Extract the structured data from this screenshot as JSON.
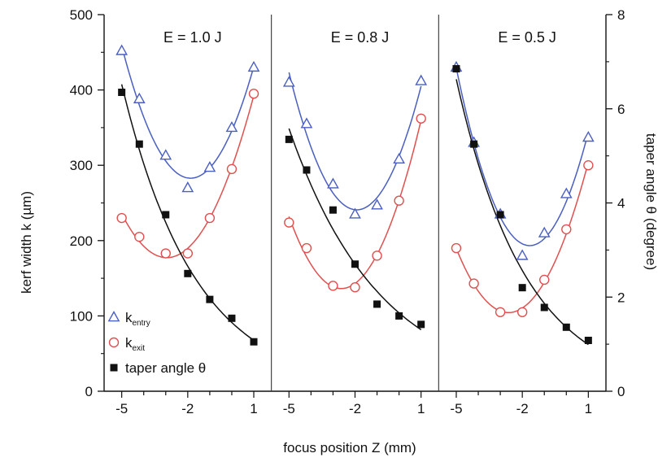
{
  "chart_data": {
    "type": "scatter",
    "xlabel": "focus position Z (mm)",
    "ylabel_left": "kerf width k (µm)",
    "ylabel_right": "taper angle θ (degree)",
    "x_ticks": [
      -5,
      -2,
      1
    ],
    "xlim": [
      -5.8,
      1.8
    ],
    "ylim_left": [
      0,
      500
    ],
    "ylim_right": [
      0,
      8
    ],
    "y_ticks_left": [
      0,
      100,
      200,
      300,
      400,
      500
    ],
    "y_ticks_right": [
      0,
      2,
      4,
      6,
      8
    ],
    "legend": {
      "position": "bottom-left",
      "entries": [
        {
          "key": "k_entry",
          "main": "k",
          "sub": "entry"
        },
        {
          "key": "k_exit",
          "main": "k",
          "sub": "exit"
        },
        {
          "key": "taper",
          "main": "taper angle θ",
          "sub": ""
        }
      ]
    },
    "colors": {
      "k_entry": "#4a5fc1",
      "k_exit": "#e05050",
      "taper": "#111111"
    },
    "panels": [
      {
        "title": "E = 1.0 J",
        "k_entry": {
          "x": [
            -5,
            -4.2,
            -3,
            -2,
            -1,
            0,
            1
          ],
          "y": [
            452,
            388,
            313,
            270,
            297,
            350,
            430
          ]
        },
        "k_exit": {
          "x": [
            -5,
            -4.2,
            -3,
            -2,
            -1,
            0,
            1
          ],
          "y": [
            230,
            205,
            183,
            183,
            230,
            295,
            395
          ]
        },
        "taper": {
          "x": [
            -5,
            -4.2,
            -3,
            -2,
            -1,
            0,
            1
          ],
          "y": [
            6.35,
            5.25,
            3.75,
            2.5,
            1.95,
            1.55,
            1.05
          ]
        }
      },
      {
        "title": "E = 0.8 J",
        "k_entry": {
          "x": [
            -5,
            -4.2,
            -3,
            -2,
            -1,
            0,
            1
          ],
          "y": [
            410,
            355,
            275,
            235,
            247,
            308,
            412
          ]
        },
        "k_exit": {
          "x": [
            -5,
            -4.2,
            -3,
            -2,
            -1,
            0,
            1
          ],
          "y": [
            224,
            190,
            140,
            138,
            180,
            253,
            362
          ]
        },
        "taper": {
          "x": [
            -5,
            -4.2,
            -3,
            -2,
            -1,
            0,
            1
          ],
          "y": [
            5.35,
            4.7,
            3.85,
            2.7,
            1.85,
            1.6,
            1.42
          ]
        }
      },
      {
        "title": "E = 0.5 J",
        "k_entry": {
          "x": [
            -5,
            -4.2,
            -3,
            -2,
            -1,
            0,
            1
          ],
          "y": [
            430,
            330,
            235,
            180,
            210,
            262,
            337
          ]
        },
        "k_exit": {
          "x": [
            -5,
            -4.2,
            -3,
            -2,
            -1,
            0,
            1
          ],
          "y": [
            190,
            143,
            105,
            105,
            148,
            215,
            300
          ]
        },
        "taper": {
          "x": [
            -5,
            -4.2,
            -3,
            -2,
            -1,
            0,
            1
          ],
          "y": [
            6.85,
            5.25,
            3.75,
            2.2,
            1.78,
            1.36,
            1.08
          ]
        }
      }
    ]
  }
}
